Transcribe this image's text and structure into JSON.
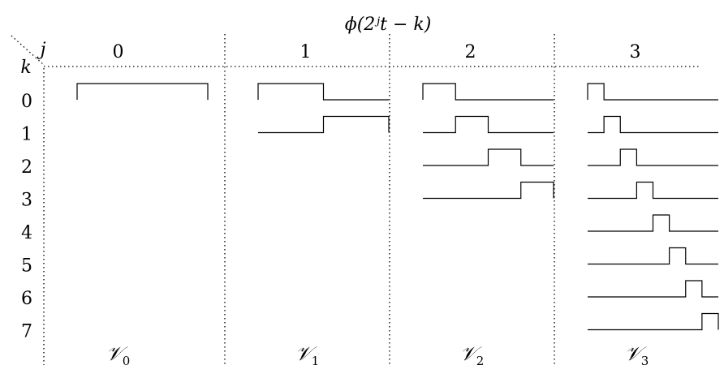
{
  "title": "ϕ(2ʲt − k)",
  "axis_j_label": "j",
  "axis_k_label": "k",
  "levels": [
    {
      "j": "0",
      "space": "𝒱",
      "space_sub": "0",
      "count": 1
    },
    {
      "j": "1",
      "space": "𝒱",
      "space_sub": "1",
      "count": 2
    },
    {
      "j": "2",
      "space": "𝒱",
      "space_sub": "2",
      "count": 4
    },
    {
      "j": "3",
      "space": "𝒱",
      "space_sub": "3",
      "count": 8
    }
  ],
  "k_rows": [
    "0",
    "1",
    "2",
    "3",
    "4",
    "5",
    "6",
    "7"
  ]
}
